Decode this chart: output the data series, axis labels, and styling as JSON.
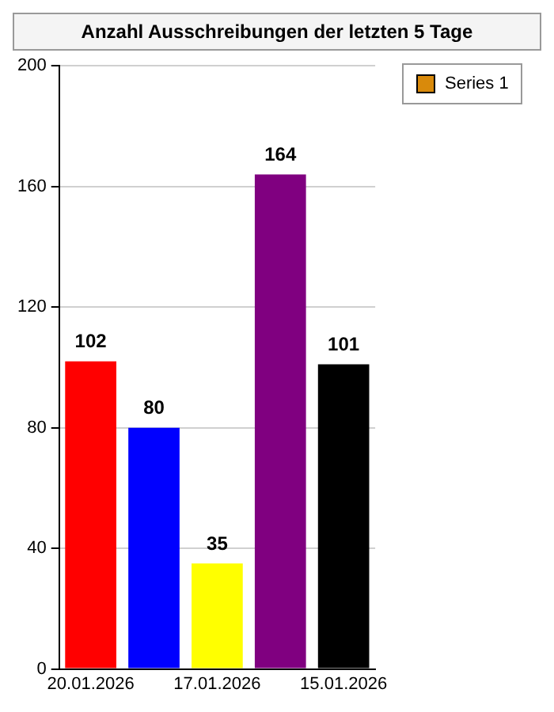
{
  "chart_data": {
    "type": "bar",
    "title": "Anzahl Ausschreibungen der letzten 5 Tage",
    "categories": [
      "20.01.2026",
      null,
      "17.01.2026",
      null,
      "15.01.2026"
    ],
    "series": [
      {
        "name": "Series 1",
        "color": "#d98a0b",
        "colors": [
          "#ff0000",
          "#0000ff",
          "#ffff00",
          "#800080",
          "#000000"
        ],
        "values": [
          102,
          80,
          35,
          164,
          101
        ]
      }
    ],
    "ylim": [
      0,
      200
    ],
    "yticks": [
      0,
      40,
      80,
      120,
      160,
      200
    ],
    "grid": "y",
    "legend": "right",
    "data_labels": true
  }
}
